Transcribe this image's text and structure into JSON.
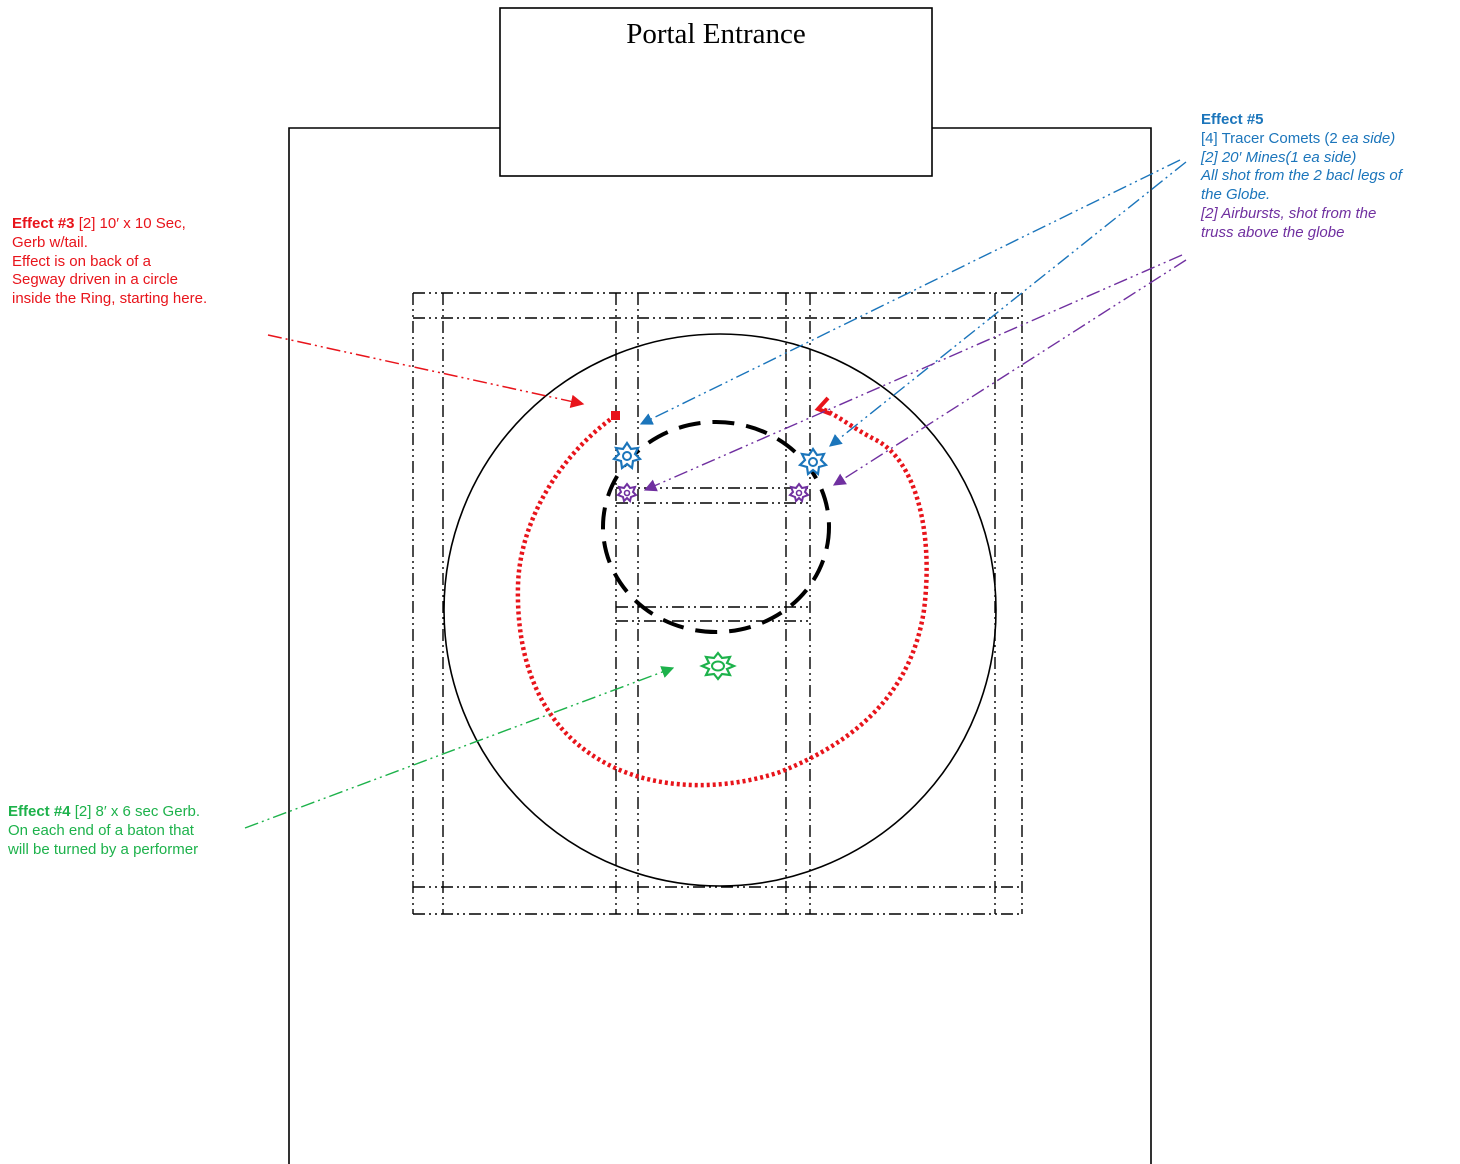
{
  "portal": {
    "title": "Portal Entrance"
  },
  "colors": {
    "effect3": "#e8141b",
    "effect4": "#1db24b",
    "effect5": "#1b75bb",
    "airburst": "#7030a0",
    "structure": "#000000"
  },
  "effect3": {
    "label": "Effect #3",
    "lines": [
      "[2] 10′ x 10 Sec,",
      "Gerb w/tail.",
      "Effect is on back of a",
      "Segway driven in a circle",
      "inside the Ring, starting here."
    ]
  },
  "effect4": {
    "label": "Effect #4",
    "lines": [
      "[2] 8′ x 6 sec Gerb.",
      "On each end of a baton that",
      "will be turned by a performer"
    ]
  },
  "effect5": {
    "label": "Effect #5",
    "line1_plain": "[4] Tracer Comets (2 ",
    "line1_italic": "ea side)",
    "lines_italic": [
      "[2] 20′ Mines(1 ea side)",
      "All shot from the 2 bacl legs of",
      "the Globe."
    ],
    "airburst_lines": [
      "[2] Airbursts, shot from the",
      "truss above the globe"
    ]
  },
  "icons": [
    "comet-burst-icon",
    "mine-burst-icon",
    "airburst-icon",
    "gerb-burst-icon"
  ]
}
